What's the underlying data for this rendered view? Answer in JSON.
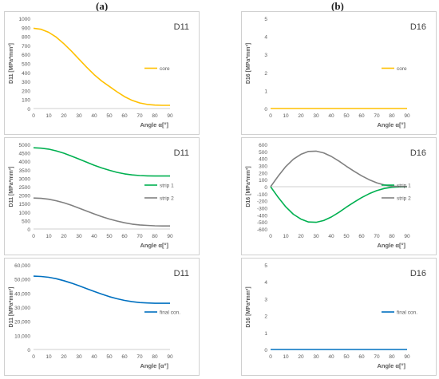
{
  "columns": {
    "left": "(a)",
    "right": "(b)"
  },
  "chart_data": [
    {
      "id": "a1",
      "type": "line",
      "title": "D11",
      "ylabel": "D11 [MPa*mm³]",
      "xlabel": "Angle α[°]",
      "xlim": [
        0,
        90
      ],
      "ylim": [
        0,
        1000
      ],
      "xticks": [
        0,
        10,
        20,
        30,
        40,
        50,
        60,
        70,
        80,
        90
      ],
      "yticks": [
        0,
        100,
        200,
        300,
        400,
        500,
        600,
        700,
        800,
        900,
        1000
      ],
      "grid": false,
      "legend": "right",
      "series": [
        {
          "name": "core",
          "color": "#FFC000",
          "x": [
            0,
            5,
            10,
            15,
            20,
            25,
            30,
            35,
            40,
            45,
            50,
            55,
            60,
            65,
            70,
            75,
            80,
            85,
            90
          ],
          "y": [
            890,
            879,
            845,
            791,
            719,
            636,
            547,
            458,
            375,
            304,
            245,
            186,
            132,
            90,
            62,
            45,
            38,
            35,
            35
          ]
        }
      ]
    },
    {
      "id": "b1",
      "type": "line",
      "title": "D16",
      "ylabel": "D16 [MPa*mm³]",
      "xlabel": "Angle α[°]",
      "xlim": [
        0,
        90
      ],
      "ylim": [
        0,
        5
      ],
      "xticks": [
        0,
        10,
        20,
        30,
        40,
        50,
        60,
        70,
        80,
        90
      ],
      "yticks": [
        0,
        1,
        2,
        3,
        4,
        5
      ],
      "grid": false,
      "legend": "right",
      "series": [
        {
          "name": "core",
          "color": "#FFC000",
          "x": [
            0,
            90
          ],
          "y": [
            0,
            0
          ]
        }
      ]
    },
    {
      "id": "a2",
      "type": "line",
      "title": "D11",
      "ylabel": "D11 [MPa*mm³]",
      "xlabel": "Angle α[°]",
      "xlim": [
        0,
        90
      ],
      "ylim": [
        0,
        5000
      ],
      "xticks": [
        0,
        10,
        20,
        30,
        40,
        50,
        60,
        70,
        80,
        90
      ],
      "yticks": [
        0,
        500,
        1000,
        1500,
        2000,
        2500,
        3000,
        3500,
        4000,
        4500,
        5000
      ],
      "grid": false,
      "legend": "right",
      "series": [
        {
          "name": "strip 1",
          "color": "#00B050",
          "x": [
            0,
            5,
            10,
            15,
            20,
            25,
            30,
            35,
            40,
            45,
            50,
            55,
            60,
            65,
            70,
            75,
            80,
            85,
            90
          ],
          "y": [
            4800,
            4780,
            4720,
            4620,
            4480,
            4310,
            4130,
            3950,
            3770,
            3610,
            3470,
            3350,
            3260,
            3200,
            3160,
            3140,
            3130,
            3130,
            3130
          ]
        },
        {
          "name": "strip 2",
          "color": "#808080",
          "x": [
            0,
            5,
            10,
            15,
            20,
            25,
            30,
            35,
            40,
            45,
            50,
            55,
            60,
            65,
            70,
            75,
            80,
            85,
            90
          ],
          "y": [
            1830,
            1810,
            1760,
            1670,
            1550,
            1400,
            1230,
            1060,
            890,
            730,
            590,
            470,
            370,
            290,
            240,
            210,
            190,
            180,
            180
          ]
        }
      ]
    },
    {
      "id": "b2",
      "type": "line",
      "title": "D16",
      "ylabel": "D16 [MPa*mm³]",
      "xlabel": "Angle α[°]",
      "xlim": [
        0,
        90
      ],
      "ylim": [
        -600,
        600
      ],
      "xticks": [
        0,
        10,
        20,
        30,
        40,
        50,
        60,
        70,
        80,
        90
      ],
      "yticks": [
        -600,
        -500,
        -400,
        -300,
        -200,
        -100,
        0,
        100,
        200,
        300,
        400,
        500,
        600
      ],
      "grid": false,
      "legend": "right",
      "series": [
        {
          "name": "strip 1",
          "color": "#00B050",
          "x": [
            0,
            5,
            10,
            15,
            20,
            25,
            30,
            35,
            40,
            45,
            50,
            55,
            60,
            65,
            70,
            75,
            80,
            85,
            90
          ],
          "y": [
            0,
            -150,
            -285,
            -390,
            -460,
            -500,
            -505,
            -480,
            -430,
            -365,
            -290,
            -220,
            -155,
            -100,
            -55,
            -25,
            -8,
            -2,
            0
          ]
        },
        {
          "name": "strip 2",
          "color": "#808080",
          "x": [
            0,
            5,
            10,
            15,
            20,
            25,
            30,
            35,
            40,
            45,
            50,
            55,
            60,
            65,
            70,
            75,
            80,
            85,
            90
          ],
          "y": [
            0,
            150,
            285,
            390,
            460,
            500,
            505,
            480,
            430,
            365,
            290,
            220,
            155,
            100,
            55,
            25,
            8,
            2,
            0
          ]
        }
      ]
    },
    {
      "id": "a3",
      "type": "line",
      "title": "D11",
      "ylabel": "D11 [MPa*mm³]",
      "xlabel": "Angle [α°]",
      "xlim": [
        0,
        90
      ],
      "ylim": [
        0,
        60000
      ],
      "xticks": [
        0,
        10,
        20,
        30,
        40,
        50,
        60,
        70,
        80,
        90
      ],
      "yticks": [
        0,
        10000,
        20000,
        30000,
        40000,
        50000,
        60000
      ],
      "ytick_labels": [
        "0",
        "10,000",
        "20,000",
        "30,000",
        "40,000",
        "50,000",
        "60,000"
      ],
      "grid": false,
      "legend": "right",
      "series": [
        {
          "name": "final con.",
          "color": "#0070C0",
          "x": [
            0,
            5,
            10,
            15,
            20,
            25,
            30,
            35,
            40,
            45,
            50,
            55,
            60,
            65,
            70,
            75,
            80,
            85,
            90
          ],
          "y": [
            52000,
            51800,
            51200,
            50200,
            48800,
            47100,
            45200,
            43200,
            41200,
            39300,
            37500,
            36000,
            34800,
            33900,
            33300,
            33000,
            32800,
            32800,
            32800
          ]
        }
      ]
    },
    {
      "id": "b3",
      "type": "line",
      "title": "D16",
      "ylabel": "D16 [MPa*mm³]",
      "xlabel": "Angle α[°]",
      "xlim": [
        0,
        90
      ],
      "ylim": [
        0,
        5
      ],
      "xticks": [
        0,
        10,
        20,
        30,
        40,
        50,
        60,
        70,
        80,
        90
      ],
      "yticks": [
        0,
        1,
        2,
        3,
        4,
        5
      ],
      "grid": false,
      "legend": "right",
      "series": [
        {
          "name": "final con.",
          "color": "#0070C0",
          "x": [
            0,
            90
          ],
          "y": [
            0,
            0
          ]
        }
      ]
    }
  ]
}
